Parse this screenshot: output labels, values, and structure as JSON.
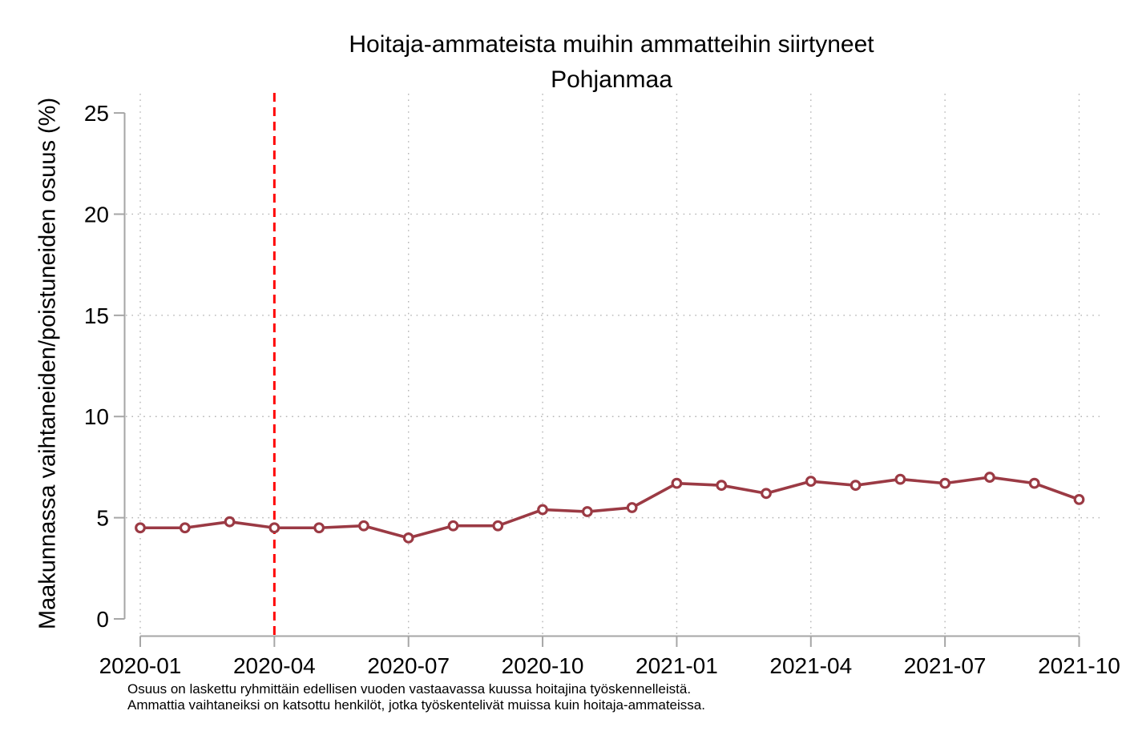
{
  "chart_data": {
    "type": "line",
    "title": "Hoitaja-ammateista muihin ammatteihin siirtyneet",
    "subtitle": "Pohjanmaa",
    "ylabel": "Maakunnassa vaihtaneiden/poistuneiden osuus (%)",
    "ylim": [
      0,
      25
    ],
    "yticks": [
      0,
      5,
      10,
      15,
      20,
      25
    ],
    "x": [
      "2020-01",
      "2020-02",
      "2020-03",
      "2020-04",
      "2020-05",
      "2020-06",
      "2020-07",
      "2020-08",
      "2020-09",
      "2020-10",
      "2020-11",
      "2020-12",
      "2021-01",
      "2021-02",
      "2021-03",
      "2021-04",
      "2021-05",
      "2021-06",
      "2021-07",
      "2021-08",
      "2021-09",
      "2021-10"
    ],
    "xtick_labels": [
      "2020-01",
      "2020-04",
      "2020-07",
      "2020-10",
      "2021-01",
      "2021-04",
      "2021-07",
      "2021-10"
    ],
    "series": [
      {
        "name": "Pohjanmaa",
        "values": [
          4.5,
          4.5,
          4.8,
          4.5,
          4.5,
          4.6,
          4.0,
          4.6,
          4.6,
          5.4,
          5.3,
          5.5,
          6.7,
          6.6,
          6.2,
          6.8,
          6.6,
          6.9,
          6.7,
          7.0,
          6.7,
          5.9
        ]
      }
    ],
    "reference_line": {
      "x": "2020-04",
      "orientation": "vertical",
      "style": "dashed"
    },
    "grid": "dotted",
    "legend": "none",
    "footnotes": [
      "Osuus on laskettu ryhmittäin edellisen vuoden vastaavassa kuussa hoitajina työskennelleistä.",
      "Ammattia vaihtaneiksi on katsottu henkilöt, jotka työskentelivät muissa kuin hoitaja-ammateissa."
    ],
    "colors": {
      "line": "#9b3a44",
      "marker_fill": "#ffffff",
      "reference": "#ff0000",
      "axis": "#a6a6a6",
      "grid": "#b5b5b5",
      "text": "#000000",
      "background": "#ffffff"
    }
  }
}
